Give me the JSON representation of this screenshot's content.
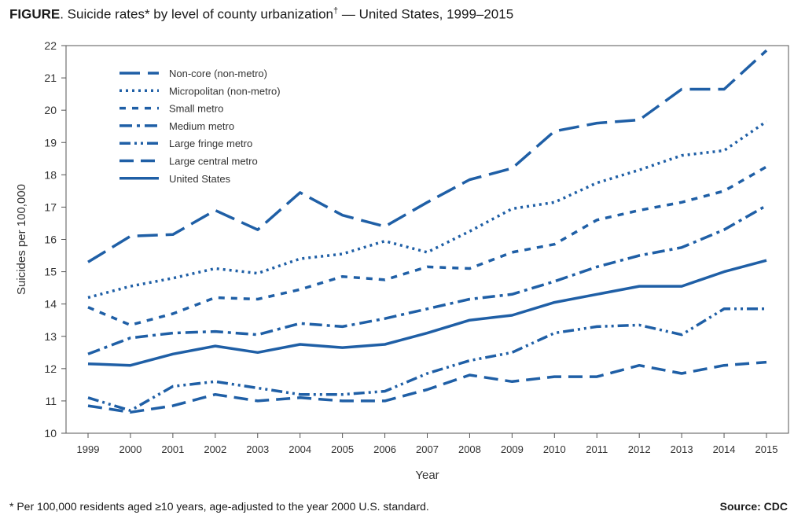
{
  "title": {
    "figure_label": "FIGURE",
    "text_before": ". Suicide rates* by level of county urbanization",
    "dagger": "†",
    "text_after": " — United States, 1999–2015"
  },
  "footnote": "* Per 100,000 residents aged ≥10 years, age-adjusted to the year 2000 U.S. standard.",
  "source": "Source: CDC",
  "chart_data": {
    "type": "line",
    "title": "Suicide rates* by level of county urbanization† — United States, 1999–2015",
    "xlabel": "Year",
    "ylabel": "Suicides per 100,000",
    "x": [
      1999,
      2000,
      2001,
      2002,
      2003,
      2004,
      2005,
      2006,
      2007,
      2008,
      2009,
      2010,
      2011,
      2012,
      2013,
      2014,
      2015
    ],
    "ylim": [
      10,
      22
    ],
    "yticks": [
      10,
      11,
      12,
      13,
      14,
      15,
      16,
      17,
      18,
      19,
      20,
      21,
      22
    ],
    "grid": false,
    "legend_position": "top-left",
    "color": "#1f5fa6",
    "series": [
      {
        "name": "Non-core (non-metro)",
        "style": "long-dash",
        "values": [
          15.3,
          16.1,
          16.15,
          16.9,
          16.3,
          17.45,
          16.75,
          16.4,
          17.15,
          17.85,
          18.2,
          19.35,
          19.6,
          19.7,
          20.65,
          20.65,
          21.85
        ]
      },
      {
        "name": "Micropolitan (non-metro)",
        "style": "dotted",
        "values": [
          14.2,
          14.55,
          14.8,
          15.1,
          14.95,
          15.4,
          15.55,
          15.95,
          15.6,
          16.25,
          16.95,
          17.15,
          17.75,
          18.15,
          18.6,
          18.75,
          19.65
        ]
      },
      {
        "name": "Small metro",
        "style": "short-dash",
        "values": [
          13.9,
          13.35,
          13.7,
          14.2,
          14.15,
          14.45,
          14.85,
          14.75,
          15.15,
          15.1,
          15.6,
          15.85,
          16.6,
          16.9,
          17.15,
          17.5,
          18.25
        ]
      },
      {
        "name": "Medium metro",
        "style": "dash-dot",
        "values": [
          12.45,
          12.95,
          13.1,
          13.15,
          13.05,
          13.4,
          13.3,
          13.55,
          13.85,
          14.15,
          14.3,
          14.7,
          15.15,
          15.5,
          15.75,
          16.3,
          17.05
        ]
      },
      {
        "name": "Large fringe metro",
        "style": "dash-dot-dot",
        "values": [
          11.1,
          10.7,
          11.45,
          11.6,
          11.4,
          11.2,
          11.2,
          11.3,
          11.85,
          12.25,
          12.5,
          13.1,
          13.3,
          13.35,
          13.05,
          13.85,
          13.85
        ]
      },
      {
        "name": "Large central metro",
        "style": "medium-dash",
        "values": [
          10.85,
          10.65,
          10.85,
          11.2,
          11.0,
          11.1,
          11.0,
          11.0,
          11.35,
          11.8,
          11.6,
          11.75,
          11.75,
          12.1,
          11.85,
          12.1,
          12.2
        ]
      },
      {
        "name": "United States",
        "style": "solid",
        "values": [
          12.15,
          12.1,
          12.45,
          12.7,
          12.5,
          12.75,
          12.65,
          12.75,
          13.1,
          13.5,
          13.65,
          14.05,
          14.3,
          14.55,
          14.55,
          15.0,
          15.35
        ]
      }
    ]
  }
}
